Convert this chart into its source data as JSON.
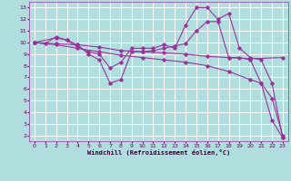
{
  "xlabel": "Windchill (Refroidissement éolien,°C)",
  "background_color": "#b0dede",
  "grid_color": "#ffffff",
  "line_color": "#993399",
  "xlim": [
    -0.5,
    23.5
  ],
  "ylim": [
    1.5,
    13.5
  ],
  "xticks": [
    0,
    1,
    2,
    3,
    4,
    5,
    6,
    7,
    8,
    9,
    10,
    11,
    12,
    13,
    14,
    15,
    16,
    17,
    18,
    19,
    20,
    21,
    22,
    23
  ],
  "yticks": [
    2,
    3,
    4,
    5,
    6,
    7,
    8,
    9,
    10,
    11,
    12,
    13
  ],
  "series": [
    {
      "x": [
        0,
        1,
        2,
        3,
        4,
        5,
        6,
        7,
        8,
        9,
        10,
        11,
        12,
        13,
        14,
        15,
        16,
        17,
        18,
        19,
        20,
        21,
        22,
        23
      ],
      "y": [
        10,
        9.9,
        10.5,
        10.2,
        9.6,
        9.2,
        9.0,
        7.8,
        8.3,
        9.5,
        9.5,
        9.5,
        9.8,
        9.5,
        11.5,
        13.0,
        13.0,
        12.0,
        12.5,
        9.5,
        8.7,
        8.5,
        6.5,
        1.8
      ]
    },
    {
      "x": [
        0,
        2,
        3,
        4,
        5,
        6,
        7,
        8,
        9,
        10,
        11,
        12,
        13,
        14,
        15,
        16,
        17,
        18,
        19,
        20,
        21,
        22,
        23
      ],
      "y": [
        10,
        10.4,
        10.2,
        9.8,
        9.0,
        8.5,
        6.5,
        6.8,
        9.2,
        9.2,
        9.3,
        9.5,
        9.7,
        9.9,
        11.0,
        11.8,
        11.8,
        8.7,
        8.7,
        8.5,
        6.5,
        3.3,
        1.8
      ]
    },
    {
      "x": [
        0,
        2,
        4,
        6,
        8,
        10,
        12,
        14,
        16,
        18,
        20,
        23
      ],
      "y": [
        10,
        9.9,
        9.8,
        9.6,
        9.3,
        9.2,
        9.1,
        9.0,
        8.8,
        8.7,
        8.6,
        8.7
      ]
    },
    {
      "x": [
        0,
        2,
        4,
        6,
        8,
        10,
        12,
        14,
        16,
        18,
        20,
        21,
        22,
        23
      ],
      "y": [
        10,
        9.8,
        9.5,
        9.2,
        8.9,
        8.7,
        8.5,
        8.3,
        8.0,
        7.5,
        6.8,
        6.5,
        5.2,
        2.0
      ]
    }
  ]
}
